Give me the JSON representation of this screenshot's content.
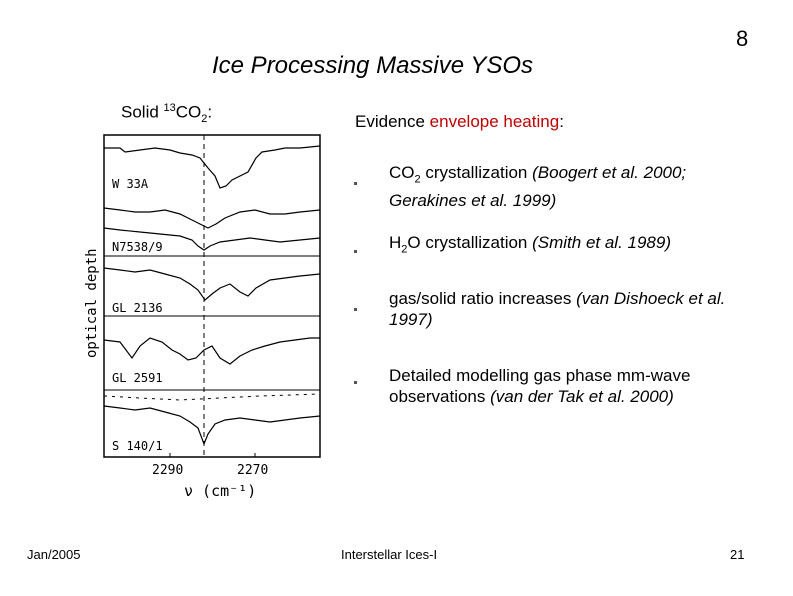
{
  "slide_number": "8",
  "title": "Ice Processing Massive YSOs",
  "figure": {
    "label_prefix": "Solid ",
    "label_sup": "13",
    "label_main": "CO",
    "label_sub": "2",
    "label_suffix": ":",
    "y_axis_label": "optical depth",
    "x_axis_label": "ν  (cm⁻¹)",
    "x_ticks": [
      "2290",
      "2270"
    ],
    "panels": [
      "W 33A",
      "N7538/9",
      "GL 2136",
      "GL 2591",
      "S 140/1"
    ]
  },
  "evidence": {
    "lead": "Evidence ",
    "highlight": "envelope heating",
    "colon": ":"
  },
  "bullets": [
    {
      "pre": "CO",
      "sub": "2",
      "main": " crystallization ",
      "ref": "(Boogert et al. 2000; Gerakines et al. 1999)"
    },
    {
      "pre": "H",
      "sub": "2",
      "main": "O crystallization ",
      "ref": "(Smith et al. 1989)"
    },
    {
      "pre": "",
      "sub": "",
      "main": "gas/solid ratio increases  ",
      "ref": "(van Dishoeck et al. 1997)"
    },
    {
      "pre": "",
      "sub": "",
      "main": "Detailed modelling gas phase mm-wave observations ",
      "ref": "(van der Tak et al. 2000)"
    }
  ],
  "footer": {
    "date": "Jan/2005",
    "center": "Interstellar Ices-I",
    "page": "21"
  },
  "colors": {
    "highlight": "#c00000"
  }
}
